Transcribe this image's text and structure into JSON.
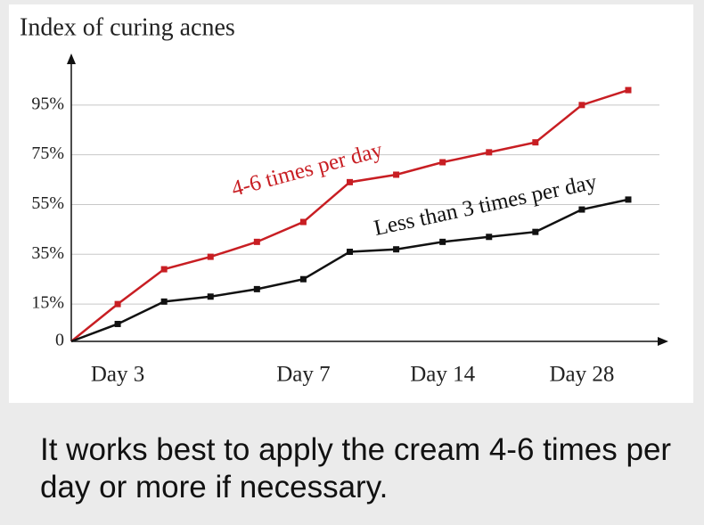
{
  "chart_data": {
    "type": "line",
    "title": "Index of curing acnes",
    "categories": [
      null,
      "Day 3",
      null,
      null,
      null,
      "Day 7",
      null,
      null,
      "Day 14",
      null,
      null,
      "Day 28",
      null
    ],
    "series": [
      {
        "name": "4-6 times per day",
        "color": "#c81e23",
        "values": [
          0,
          15,
          29,
          34,
          40,
          48,
          64,
          67,
          72,
          76,
          80,
          95,
          101
        ]
      },
      {
        "name": "Less than 3 times per day",
        "color": "#111111",
        "values": [
          0,
          7,
          16,
          18,
          21,
          25,
          36,
          37,
          40,
          42,
          44,
          53,
          57
        ]
      }
    ],
    "ylim": [
      0,
      115
    ],
    "yticks": [
      0,
      {
        "value": 15,
        "label": "15%"
      },
      {
        "value": 35,
        "label": "35%"
      },
      {
        "value": 55,
        "label": "55%"
      },
      {
        "value": 75,
        "label": "75%"
      },
      {
        "value": 95,
        "label": "95%"
      }
    ],
    "grid": true
  },
  "caption": "It works best to apply the cream 4-6 times per day or more if necessary."
}
